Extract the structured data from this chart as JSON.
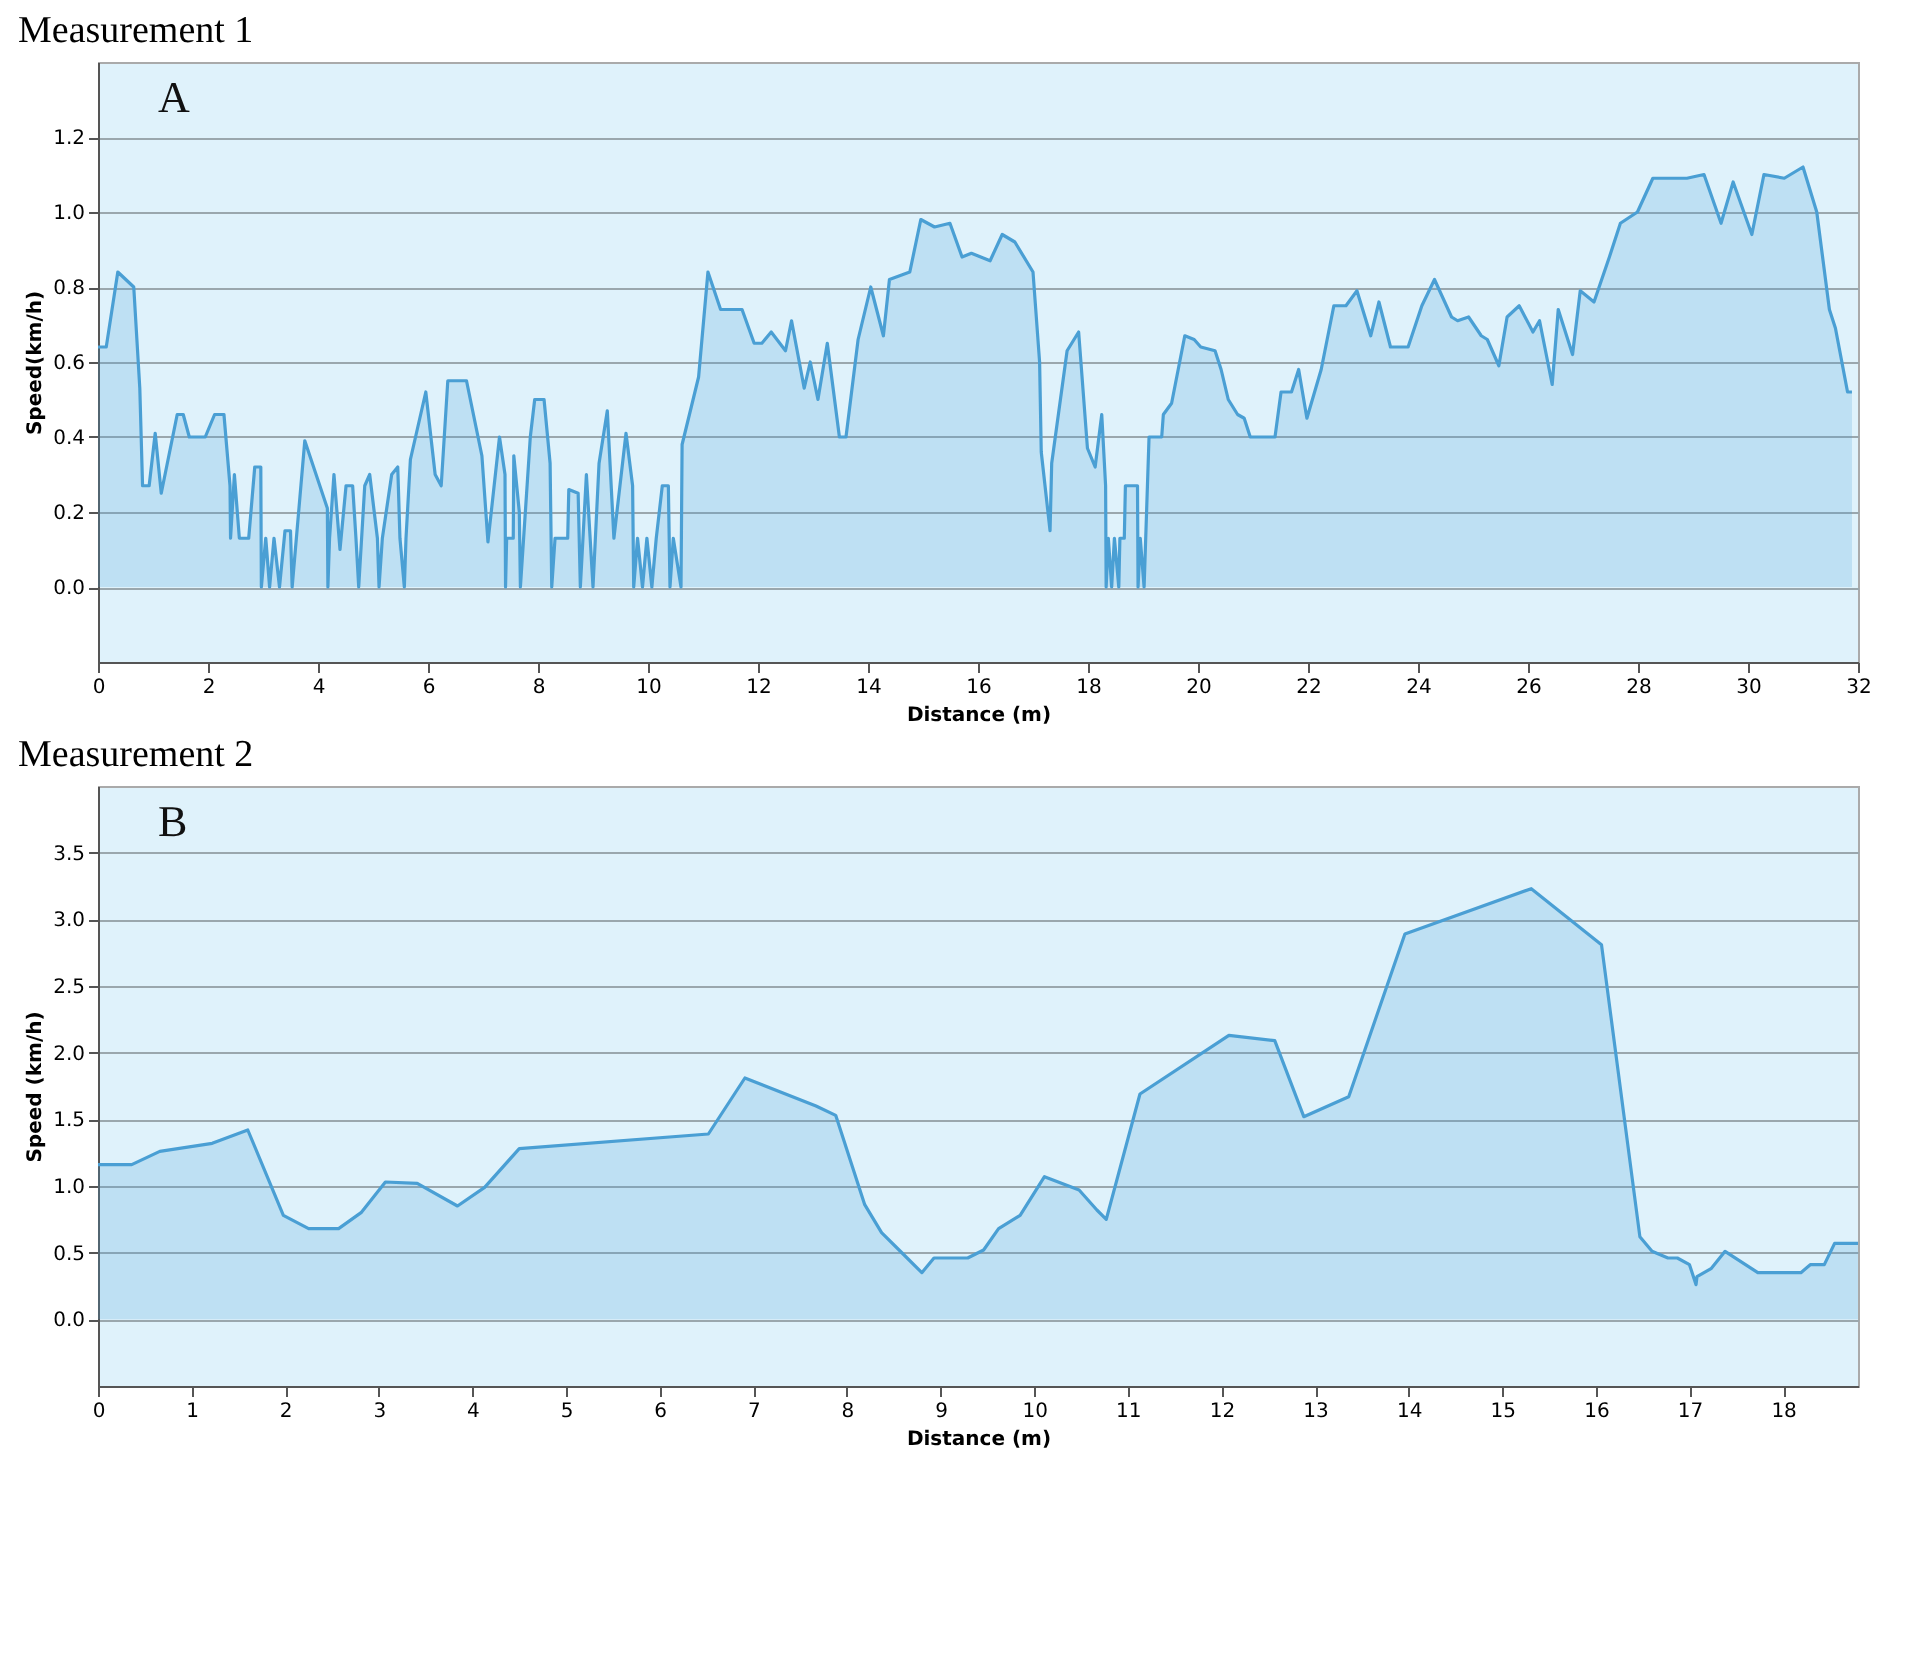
{
  "chart_data": [
    {
      "type": "area",
      "title": "Measurement 1",
      "xlabel": "Distance  (m)",
      "ylabel": "Speed(km/h)",
      "annotations": [
        "A"
      ],
      "grid": "y",
      "xlim": [
        0,
        32
      ],
      "xticks": [
        0,
        2,
        4,
        6,
        8,
        10,
        12,
        14,
        16,
        18,
        20,
        22,
        24,
        26,
        28,
        30,
        32
      ],
      "ylim": [
        -0.2,
        1.4
      ],
      "yticks": [
        {
          "value": 0,
          "label": "0.0"
        },
        {
          "value": 0.2,
          "label": "0.2"
        },
        {
          "value": 0.4,
          "label": "0.4"
        },
        {
          "value": 0.6,
          "label": "0.6"
        },
        {
          "value": 0.8,
          "label": "0.8"
        },
        {
          "value": 1,
          "label": "1.0"
        },
        {
          "value": 1.2,
          "label": "1.2"
        }
      ],
      "x": [
        0,
        0.15,
        0.36,
        0.65,
        0.76,
        0.81,
        0.93,
        1.04,
        1.15,
        1.44,
        1.55,
        1.66,
        1.95,
        2.12,
        2.29,
        2.4,
        2.41,
        2.48,
        2.57,
        2.74,
        2.85,
        2.96,
        2.97,
        3.05,
        3.12,
        3.2,
        3.3,
        3.4,
        3.5,
        3.53,
        3.76,
        4.17,
        4.18,
        4.21,
        4.29,
        4.4,
        4.51,
        4.63,
        4.69,
        4.74,
        4.85,
        4.94,
        5.08,
        5.11,
        5.17,
        5.34,
        5.45,
        5.49,
        5.57,
        5.6,
        5.68,
        5.96,
        6.13,
        6.24,
        6.36,
        6.7,
        6.98,
        7.09,
        7.3,
        7.4,
        7.41,
        7.43,
        7.55,
        7.56,
        7.66,
        7.68,
        7.86,
        7.94,
        8.11,
        8.22,
        8.25,
        8.31,
        8.54,
        8.56,
        8.73,
        8.77,
        8.88,
        8.94,
        9.0,
        9.11,
        9.26,
        9.38,
        9.6,
        9.72,
        9.74,
        9.81,
        9.9,
        9.98,
        10.07,
        10.15,
        10.26,
        10.37,
        10.4,
        10.46,
        10.6,
        10.62,
        10.92,
        11.09,
        11.32,
        11.71,
        11.93,
        12.07,
        12.24,
        12.5,
        12.61,
        12.84,
        12.95,
        13.09,
        13.26,
        13.48,
        13.6,
        13.82,
        14.05,
        14.28,
        14.39,
        14.76,
        14.96,
        15.21,
        15.49,
        15.71,
        15.88,
        16.22,
        16.44,
        16.67,
        17.0,
        17.12,
        17.15,
        17.31,
        17.34,
        17.62,
        17.83,
        17.99,
        18.13,
        18.25,
        18.32,
        18.33,
        18.37,
        18.43,
        18.48,
        18.56,
        18.58,
        18.66,
        18.68,
        18.9,
        18.91,
        18.95,
        19.02,
        19.11,
        19.34,
        19.37,
        19.52,
        19.76,
        19.93,
        20.05,
        20.31,
        20.42,
        20.55,
        20.72,
        20.84,
        20.95,
        21.4,
        21.51,
        21.7,
        21.83,
        21.98,
        22.24,
        22.47,
        22.69,
        22.89,
        23.14,
        23.29,
        23.5,
        23.82,
        24.07,
        24.3,
        24.61,
        24.72,
        24.92,
        25.15,
        25.26,
        25.47,
        25.62,
        25.84,
        26.09,
        26.21,
        26.44,
        26.55,
        26.81,
        26.95,
        27.2,
        27.48,
        27.68,
        27.99,
        28.27,
        28.89,
        29.2,
        29.51,
        29.73,
        30.07,
        30.29,
        30.66,
        31.0,
        31.25,
        31.48,
        31.59,
        31.81,
        31.89
      ],
      "series": [
        {
          "color": "#4a9fd4",
          "values": [
            0.64,
            0.64,
            0.84,
            0.8,
            0.53,
            0.27,
            0.27,
            0.41,
            0.25,
            0.46,
            0.46,
            0.4,
            0.4,
            0.46,
            0.46,
            0.27,
            0.13,
            0.3,
            0.13,
            0.13,
            0.32,
            0.32,
            0.0,
            0.13,
            0.0,
            0.13,
            0.0,
            0.15,
            0.15,
            0.0,
            0.39,
            0.21,
            0.0,
            0.13,
            0.3,
            0.1,
            0.27,
            0.27,
            0.13,
            0.0,
            0.27,
            0.3,
            0.13,
            0.0,
            0.13,
            0.3,
            0.32,
            0.13,
            0.0,
            0.13,
            0.34,
            0.52,
            0.3,
            0.27,
            0.55,
            0.55,
            0.35,
            0.12,
            0.4,
            0.3,
            0.0,
            0.13,
            0.13,
            0.35,
            0.2,
            0.0,
            0.4,
            0.5,
            0.5,
            0.33,
            0.0,
            0.13,
            0.13,
            0.26,
            0.25,
            0.0,
            0.3,
            0.15,
            0.0,
            0.33,
            0.47,
            0.13,
            0.41,
            0.27,
            0.0,
            0.13,
            0.0,
            0.13,
            0.0,
            0.13,
            0.27,
            0.27,
            0.0,
            0.13,
            0.0,
            0.38,
            0.56,
            0.84,
            0.74,
            0.74,
            0.65,
            0.65,
            0.68,
            0.63,
            0.71,
            0.53,
            0.6,
            0.5,
            0.65,
            0.4,
            0.4,
            0.66,
            0.8,
            0.67,
            0.82,
            0.84,
            0.98,
            0.96,
            0.97,
            0.88,
            0.89,
            0.87,
            0.94,
            0.92,
            0.84,
            0.6,
            0.36,
            0.15,
            0.33,
            0.63,
            0.68,
            0.37,
            0.32,
            0.46,
            0.27,
            0.0,
            0.13,
            0.0,
            0.13,
            0.0,
            0.13,
            0.13,
            0.27,
            0.27,
            0.0,
            0.13,
            0.0,
            0.4,
            0.4,
            0.46,
            0.49,
            0.67,
            0.66,
            0.64,
            0.63,
            0.58,
            0.5,
            0.46,
            0.45,
            0.4,
            0.4,
            0.52,
            0.52,
            0.58,
            0.45,
            0.58,
            0.75,
            0.75,
            0.79,
            0.67,
            0.76,
            0.64,
            0.64,
            0.75,
            0.82,
            0.72,
            0.71,
            0.72,
            0.67,
            0.66,
            0.59,
            0.72,
            0.75,
            0.68,
            0.71,
            0.54,
            0.74,
            0.62,
            0.79,
            0.76,
            0.88,
            0.97,
            1.0,
            1.09,
            1.09,
            1.1,
            0.97,
            1.08,
            0.94,
            1.1,
            1.09,
            1.12,
            1.0,
            0.74,
            0.69,
            0.52,
            0.52
          ]
        }
      ]
    },
    {
      "type": "area",
      "title": "Measurement 2",
      "xlabel": "Distance  (m)",
      "ylabel": "Speed (km/h)",
      "annotations": [
        "B"
      ],
      "grid": "y",
      "xlim": [
        0,
        18.8
      ],
      "xticks": [
        0,
        1,
        2,
        3,
        4,
        5,
        6,
        7,
        8,
        9,
        10,
        11,
        12,
        13,
        14,
        15,
        16,
        17,
        18
      ],
      "ylim": [
        -0.5,
        4.0
      ],
      "yticks": [
        {
          "value": 0,
          "label": "0.0"
        },
        {
          "value": 0.5,
          "label": "0.5"
        },
        {
          "value": 1,
          "label": "1.0"
        },
        {
          "value": 1.5,
          "label": "1.5"
        },
        {
          "value": 2,
          "label": "2.0"
        },
        {
          "value": 2.5,
          "label": "2.5"
        },
        {
          "value": 3,
          "label": "3.0"
        },
        {
          "value": 3.5,
          "label": "3.5"
        }
      ],
      "x": [
        0,
        0.36,
        0.66,
        1.22,
        1.6,
        1.98,
        2.25,
        2.57,
        2.81,
        3.07,
        3.41,
        3.84,
        4.13,
        4.5,
        6.52,
        6.91,
        7.67,
        7.88,
        8.19,
        8.37,
        8.6,
        8.8,
        8.93,
        9.29,
        9.46,
        9.62,
        9.85,
        10.11,
        10.48,
        10.67,
        10.77,
        11.13,
        12.08,
        12.57,
        12.88,
        13.36,
        13.96,
        15.31,
        16.06,
        16.47,
        16.6,
        16.77,
        16.87,
        17.0,
        17.07,
        17.08,
        17.23,
        17.38,
        17.73,
        18.19,
        18.29,
        18.44,
        18.55,
        18.8
      ],
      "series": [
        {
          "color": "#4a9fd4",
          "values": [
            1.16,
            1.16,
            1.26,
            1.32,
            1.42,
            0.78,
            0.68,
            0.68,
            0.8,
            1.03,
            1.02,
            0.85,
            0.99,
            1.28,
            1.39,
            1.81,
            1.6,
            1.53,
            0.86,
            0.65,
            0.49,
            0.35,
            0.46,
            0.46,
            0.52,
            0.68,
            0.78,
            1.07,
            0.97,
            0.82,
            0.75,
            1.69,
            2.13,
            2.09,
            1.52,
            1.67,
            2.89,
            3.23,
            2.81,
            0.62,
            0.51,
            0.46,
            0.46,
            0.41,
            0.26,
            0.32,
            0.38,
            0.51,
            0.35,
            0.35,
            0.41,
            0.41,
            0.57,
            0.57
          ]
        }
      ]
    }
  ]
}
